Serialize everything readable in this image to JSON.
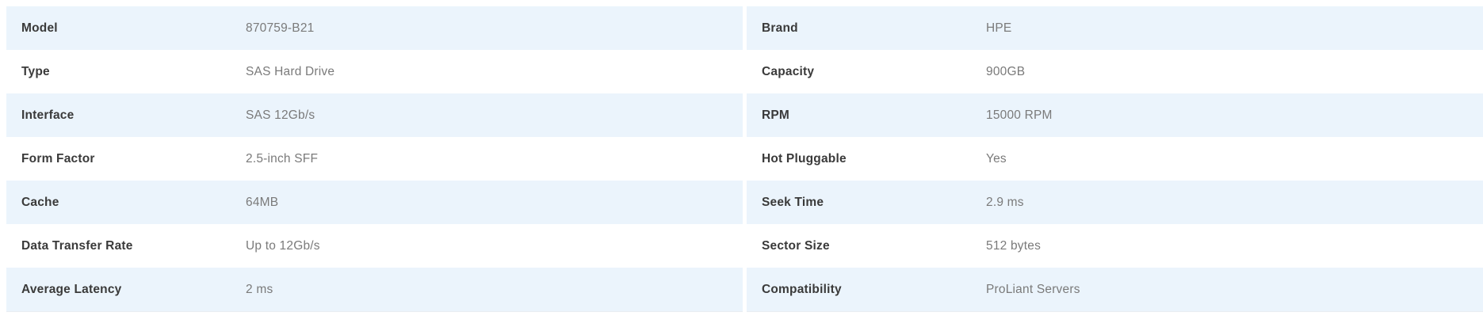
{
  "page": {
    "background": "#ffffff",
    "row_alt_color": "#ebf4fc",
    "label_color": "#3a3a3a",
    "value_color": "#7a7a7a",
    "bottom_rule_color": "#e9edf1"
  },
  "spec_table": {
    "left": {
      "rows": [
        {
          "label": "Model",
          "value": "870759-B21"
        },
        {
          "label": "Type",
          "value": "SAS Hard Drive"
        },
        {
          "label": "Interface",
          "value": "SAS 12Gb/s"
        },
        {
          "label": "Form Factor",
          "value": "2.5-inch SFF"
        },
        {
          "label": "Cache",
          "value": "64MB"
        },
        {
          "label": "Data Transfer Rate",
          "value": "Up to 12Gb/s"
        },
        {
          "label": "Average Latency",
          "value": "2 ms"
        }
      ]
    },
    "right": {
      "rows": [
        {
          "label": "Brand",
          "value": "HPE"
        },
        {
          "label": "Capacity",
          "value": "900GB"
        },
        {
          "label": "RPM",
          "value": "15000 RPM"
        },
        {
          "label": "Hot Pluggable",
          "value": "Yes"
        },
        {
          "label": "Seek Time",
          "value": "2.9 ms"
        },
        {
          "label": "Sector Size",
          "value": "512 bytes"
        },
        {
          "label": "Compatibility",
          "value": "ProLiant Servers"
        }
      ]
    }
  }
}
